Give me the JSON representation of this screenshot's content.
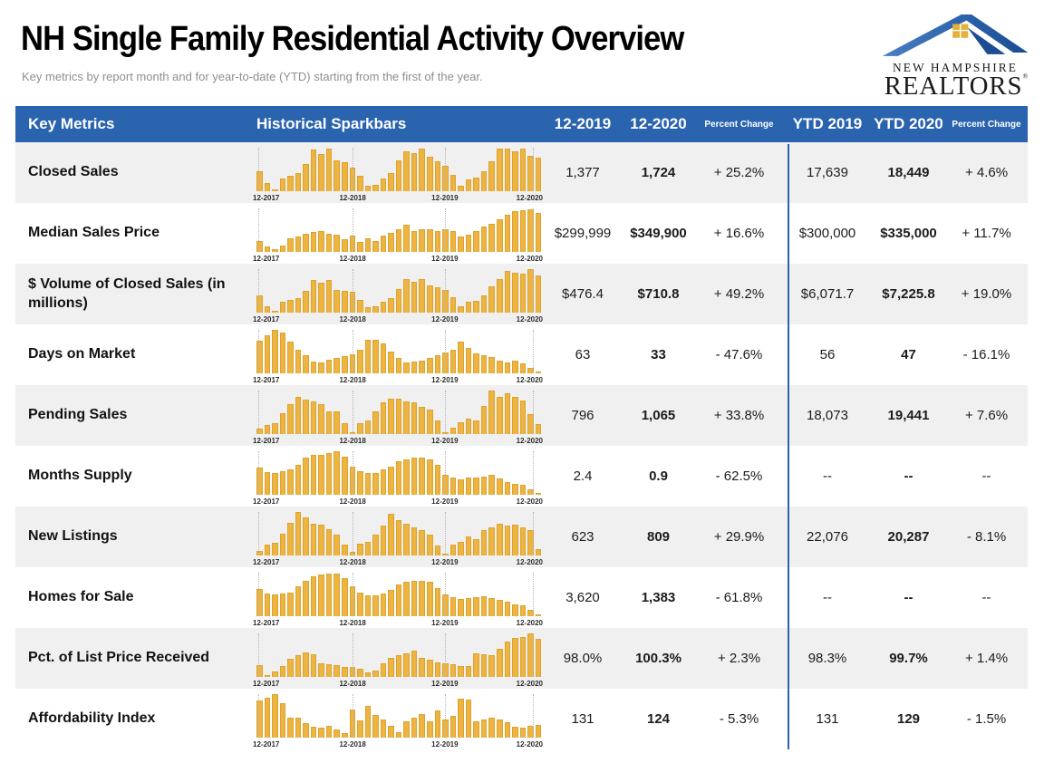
{
  "page": {
    "title": "NH Single Family Residential Activity Overview",
    "subtitle": "Key metrics by report month and for year-to-date (YTD) starting from the first of the year."
  },
  "logo": {
    "line1": "NEW HAMPSHIRE",
    "line2": "REALTORS",
    "registered": "®"
  },
  "colors": {
    "header_bg": "#2A64AE",
    "bar_fill": "#EDB441",
    "bar_border": "#DCA32F",
    "row_alt_bg": "#F0F0F0",
    "divider_blue": "#2A64AE"
  },
  "table_headers": {
    "key_metrics": "Key Metrics",
    "sparkbars": "Historical Sparkbars",
    "month_2019": "12-2019",
    "month_2020": "12-2020",
    "percent_change": "Percent Change",
    "ytd_2019": "YTD 2019",
    "ytd_2020": "YTD 2020"
  },
  "chart_data": {
    "type": "bar",
    "note": "Each row has a monthly sparkbar series from 12-2017 through 12-2020 (37 months), values normalized 0-1 of row max",
    "x_axis_labels": [
      "12-2017",
      "12-2018",
      "12-2019",
      "12-2020"
    ],
    "rows": [
      {
        "metric": "Closed Sales",
        "m_2019": "1,377",
        "m_2020": "1,724",
        "pct_change": "+ 25.2%",
        "ytd_2019": "17,639",
        "ytd_2020": "18,449",
        "ytd_pct_change": "+ 4.6%",
        "spark": [
          0.45,
          0.18,
          0.05,
          0.3,
          0.35,
          0.42,
          0.62,
          0.95,
          0.85,
          0.97,
          0.7,
          0.67,
          0.55,
          0.35,
          0.12,
          0.15,
          0.3,
          0.42,
          0.7,
          0.92,
          0.88,
          0.97,
          0.8,
          0.68,
          0.58,
          0.38,
          0.12,
          0.28,
          0.32,
          0.45,
          0.68,
          0.97,
          0.97,
          0.92,
          0.97,
          0.82,
          0.78
        ]
      },
      {
        "metric": "Median Sales Price",
        "m_2019": "$299,999",
        "m_2020": "$349,900",
        "pct_change": "+ 16.6%",
        "ytd_2019": "$300,000",
        "ytd_2020": "$335,000",
        "ytd_pct_change": "+ 11.7%",
        "spark": [
          0.25,
          0.12,
          0.06,
          0.15,
          0.32,
          0.35,
          0.42,
          0.46,
          0.48,
          0.42,
          0.4,
          0.3,
          0.38,
          0.22,
          0.32,
          0.25,
          0.38,
          0.44,
          0.52,
          0.62,
          0.48,
          0.53,
          0.53,
          0.48,
          0.52,
          0.48,
          0.36,
          0.4,
          0.48,
          0.58,
          0.65,
          0.75,
          0.85,
          0.93,
          0.95,
          0.97,
          0.9
        ]
      },
      {
        "metric": "$ Volume of Closed Sales (in millions)",
        "m_2019": "$476.4",
        "m_2020": "$710.8",
        "pct_change": "+ 49.2%",
        "ytd_2019": "$6,071.7",
        "ytd_2020": "$7,225.8",
        "ytd_pct_change": "+ 19.0%",
        "spark": [
          0.4,
          0.15,
          0.04,
          0.25,
          0.3,
          0.33,
          0.5,
          0.75,
          0.68,
          0.75,
          0.52,
          0.5,
          0.47,
          0.3,
          0.13,
          0.14,
          0.26,
          0.33,
          0.55,
          0.78,
          0.7,
          0.78,
          0.62,
          0.58,
          0.52,
          0.35,
          0.15,
          0.25,
          0.28,
          0.4,
          0.6,
          0.78,
          0.95,
          0.92,
          0.9,
          1.0,
          0.85
        ]
      },
      {
        "metric": "Days on Market",
        "m_2019": "63",
        "m_2020": "33",
        "pct_change": "- 47.6%",
        "ytd_2019": "56",
        "ytd_2020": "47",
        "ytd_pct_change": "- 16.1%",
        "spark": [
          0.75,
          0.88,
          1.0,
          0.93,
          0.72,
          0.55,
          0.42,
          0.28,
          0.25,
          0.32,
          0.36,
          0.4,
          0.44,
          0.55,
          0.78,
          0.78,
          0.68,
          0.5,
          0.35,
          0.25,
          0.28,
          0.3,
          0.35,
          0.42,
          0.48,
          0.55,
          0.72,
          0.58,
          0.45,
          0.42,
          0.38,
          0.3,
          0.25,
          0.3,
          0.22,
          0.12,
          0.05
        ]
      },
      {
        "metric": "Pending Sales",
        "m_2019": "796",
        "m_2020": "1,065",
        "pct_change": "+ 33.8%",
        "ytd_2019": "18,073",
        "ytd_2020": "19,441",
        "ytd_pct_change": "+ 7.6%",
        "spark": [
          0.12,
          0.2,
          0.25,
          0.48,
          0.68,
          0.85,
          0.8,
          0.75,
          0.68,
          0.52,
          0.52,
          0.25,
          0.05,
          0.25,
          0.32,
          0.52,
          0.72,
          0.82,
          0.82,
          0.76,
          0.72,
          0.62,
          0.56,
          0.32,
          0.04,
          0.15,
          0.28,
          0.36,
          0.32,
          0.65,
          1.0,
          0.85,
          0.93,
          0.85,
          0.78,
          0.46,
          0.22
        ]
      },
      {
        "metric": "Months Supply",
        "m_2019": "2.4",
        "m_2020": "0.9",
        "pct_change": "- 62.5%",
        "ytd_2019": "--",
        "ytd_2020": "--",
        "ytd_pct_change": "--",
        "spark": [
          0.62,
          0.52,
          0.5,
          0.55,
          0.58,
          0.68,
          0.85,
          0.92,
          0.92,
          0.95,
          1.0,
          0.88,
          0.65,
          0.55,
          0.5,
          0.5,
          0.58,
          0.65,
          0.78,
          0.82,
          0.85,
          0.85,
          0.82,
          0.68,
          0.45,
          0.4,
          0.36,
          0.4,
          0.4,
          0.42,
          0.45,
          0.38,
          0.3,
          0.26,
          0.22,
          0.12,
          0.04
        ]
      },
      {
        "metric": "New Listings",
        "m_2019": "623",
        "m_2020": "809",
        "pct_change": "+ 29.9%",
        "ytd_2019": "22,076",
        "ytd_2020": "20,287",
        "ytd_pct_change": "- 8.1%",
        "spark": [
          0.1,
          0.24,
          0.3,
          0.5,
          0.75,
          1.0,
          0.88,
          0.72,
          0.7,
          0.6,
          0.48,
          0.25,
          0.08,
          0.27,
          0.32,
          0.48,
          0.68,
          0.95,
          0.82,
          0.72,
          0.65,
          0.58,
          0.48,
          0.22,
          0.04,
          0.24,
          0.32,
          0.44,
          0.38,
          0.58,
          0.65,
          0.72,
          0.68,
          0.7,
          0.65,
          0.58,
          0.15
        ]
      },
      {
        "metric": "Homes for Sale",
        "m_2019": "3,620",
        "m_2020": "1,383",
        "pct_change": "- 61.8%",
        "ytd_2019": "--",
        "ytd_2020": "--",
        "ytd_pct_change": "--",
        "spark": [
          0.62,
          0.52,
          0.5,
          0.52,
          0.55,
          0.68,
          0.82,
          0.92,
          0.95,
          0.97,
          0.97,
          0.88,
          0.68,
          0.55,
          0.48,
          0.48,
          0.52,
          0.6,
          0.72,
          0.8,
          0.82,
          0.82,
          0.8,
          0.65,
          0.5,
          0.44,
          0.4,
          0.42,
          0.44,
          0.45,
          0.42,
          0.38,
          0.33,
          0.28,
          0.24,
          0.15,
          0.03
        ]
      },
      {
        "metric": "Pct. of List Price Received",
        "m_2019": "98.0%",
        "m_2020": "100.3%",
        "pct_change": "+ 2.3%",
        "ytd_2019": "98.3%",
        "ytd_2020": "99.7%",
        "ytd_pct_change": "+ 1.4%",
        "spark": [
          0.28,
          0.05,
          0.12,
          0.24,
          0.42,
          0.5,
          0.56,
          0.52,
          0.32,
          0.3,
          0.27,
          0.22,
          0.22,
          0.18,
          0.1,
          0.14,
          0.32,
          0.44,
          0.5,
          0.54,
          0.6,
          0.44,
          0.4,
          0.34,
          0.32,
          0.3,
          0.24,
          0.24,
          0.54,
          0.52,
          0.5,
          0.64,
          0.82,
          0.9,
          0.92,
          1.0,
          0.88
        ]
      },
      {
        "metric": "Affordability Index",
        "m_2019": "131",
        "m_2020": "124",
        "pct_change": "- 5.3%",
        "ytd_2019": "131",
        "ytd_2020": "129",
        "ytd_pct_change": "- 1.5%",
        "spark": [
          0.85,
          0.92,
          1.0,
          0.8,
          0.45,
          0.45,
          0.33,
          0.26,
          0.22,
          0.28,
          0.18,
          0.1,
          0.65,
          0.4,
          0.72,
          0.52,
          0.42,
          0.28,
          0.12,
          0.38,
          0.45,
          0.55,
          0.38,
          0.62,
          0.42,
          0.5,
          0.9,
          0.88,
          0.38,
          0.42,
          0.45,
          0.42,
          0.35,
          0.25,
          0.22,
          0.28,
          0.3
        ]
      }
    ]
  }
}
